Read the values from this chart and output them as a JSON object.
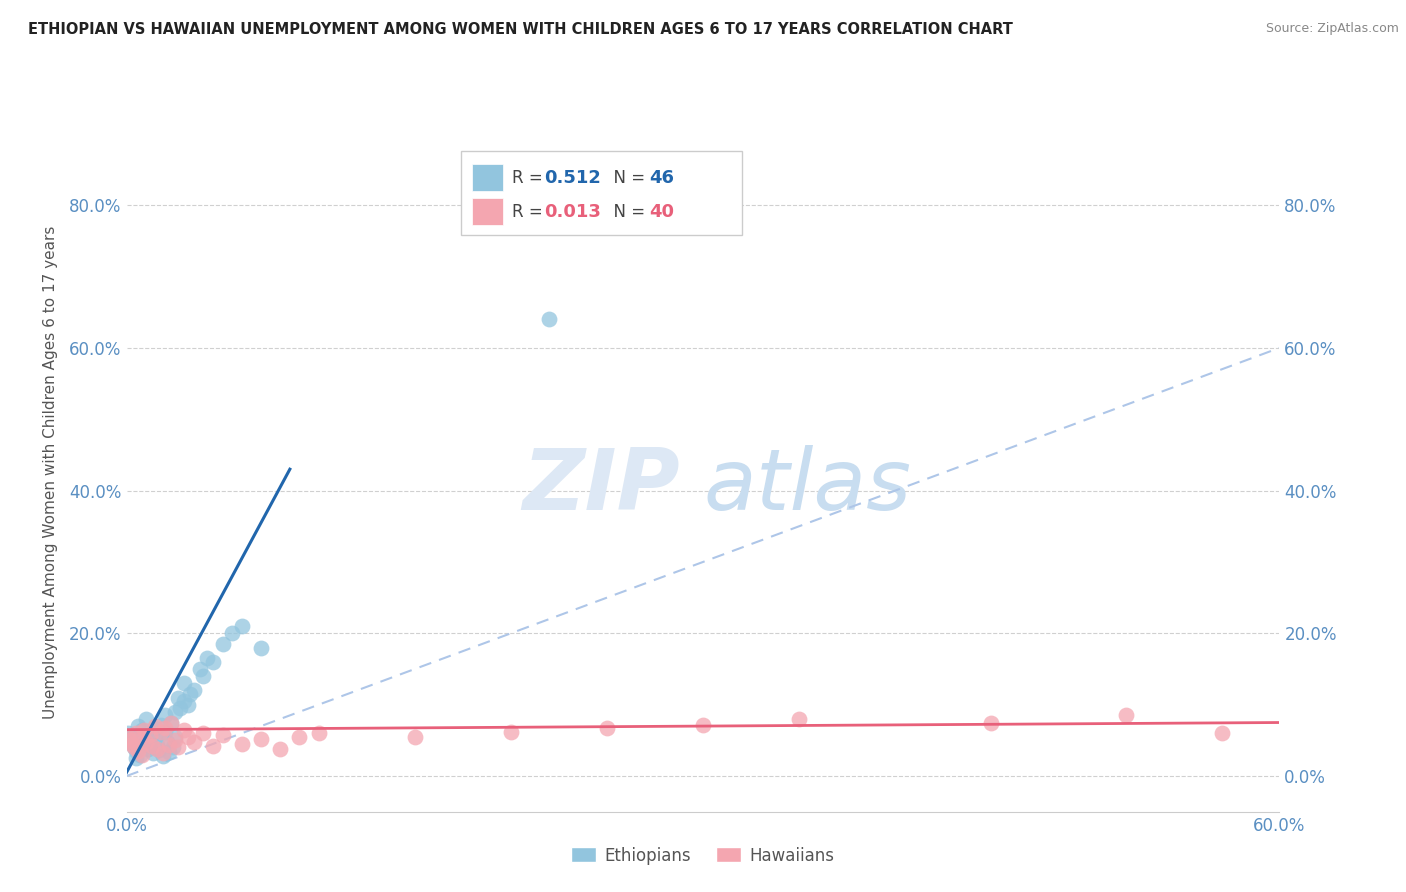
{
  "title": "ETHIOPIAN VS HAWAIIAN UNEMPLOYMENT AMONG WOMEN WITH CHILDREN AGES 6 TO 17 YEARS CORRELATION CHART",
  "source": "Source: ZipAtlas.com",
  "ylabel_label": "Unemployment Among Women with Children Ages 6 to 17 years",
  "legend_ethiopians": "Ethiopians",
  "legend_hawaiians": "Hawaiians",
  "R_ethiopians": "0.512",
  "N_ethiopians": "46",
  "R_hawaiians": "0.013",
  "N_hawaiians": "40",
  "ethiopian_color": "#92c5de",
  "hawaiian_color": "#f4a6b0",
  "ethiopian_line_color": "#2166ac",
  "hawaiian_line_color": "#e8607a",
  "diagonal_color": "#aec6e8",
  "xlim": [
    0.0,
    0.6
  ],
  "ylim": [
    -0.05,
    0.9
  ],
  "background_color": "#ffffff",
  "watermark_zip": "ZIP",
  "watermark_atlas": "atlas",
  "grid_color": "#d0d0d0",
  "tick_color": "#5a8fc2",
  "eth_x": [
    0.001,
    0.002,
    0.003,
    0.004,
    0.005,
    0.005,
    0.006,
    0.007,
    0.008,
    0.009,
    0.01,
    0.01,
    0.011,
    0.012,
    0.013,
    0.014,
    0.015,
    0.015,
    0.016,
    0.017,
    0.018,
    0.019,
    0.02,
    0.02,
    0.021,
    0.022,
    0.023,
    0.024,
    0.025,
    0.025,
    0.027,
    0.028,
    0.03,
    0.03,
    0.032,
    0.033,
    0.035,
    0.038,
    0.04,
    0.042,
    0.045,
    0.05,
    0.055,
    0.06,
    0.07,
    0.22
  ],
  "eth_y": [
    0.06,
    0.055,
    0.048,
    0.04,
    0.035,
    0.025,
    0.07,
    0.03,
    0.065,
    0.045,
    0.05,
    0.08,
    0.038,
    0.042,
    0.058,
    0.032,
    0.068,
    0.055,
    0.044,
    0.036,
    0.072,
    0.028,
    0.062,
    0.085,
    0.048,
    0.033,
    0.075,
    0.041,
    0.055,
    0.09,
    0.11,
    0.095,
    0.105,
    0.13,
    0.1,
    0.115,
    0.12,
    0.15,
    0.14,
    0.165,
    0.16,
    0.185,
    0.2,
    0.21,
    0.18,
    0.64
  ],
  "haw_x": [
    0.001,
    0.002,
    0.003,
    0.004,
    0.005,
    0.006,
    0.007,
    0.008,
    0.009,
    0.01,
    0.012,
    0.013,
    0.015,
    0.016,
    0.018,
    0.019,
    0.02,
    0.022,
    0.023,
    0.025,
    0.027,
    0.03,
    0.032,
    0.035,
    0.04,
    0.045,
    0.05,
    0.06,
    0.07,
    0.08,
    0.09,
    0.1,
    0.15,
    0.2,
    0.25,
    0.3,
    0.35,
    0.45,
    0.52,
    0.57
  ],
  "haw_y": [
    0.055,
    0.05,
    0.045,
    0.04,
    0.06,
    0.035,
    0.055,
    0.03,
    0.065,
    0.048,
    0.058,
    0.042,
    0.07,
    0.038,
    0.062,
    0.032,
    0.068,
    0.044,
    0.075,
    0.05,
    0.04,
    0.065,
    0.055,
    0.048,
    0.06,
    0.042,
    0.058,
    0.045,
    0.052,
    0.038,
    0.055,
    0.06,
    0.055,
    0.062,
    0.068,
    0.072,
    0.08,
    0.075,
    0.085,
    0.06
  ],
  "eth_line_x": [
    0.0,
    0.085
  ],
  "eth_line_y": [
    0.005,
    0.43
  ],
  "haw_line_x": [
    0.0,
    0.6
  ],
  "haw_line_y": [
    0.065,
    0.075
  ]
}
